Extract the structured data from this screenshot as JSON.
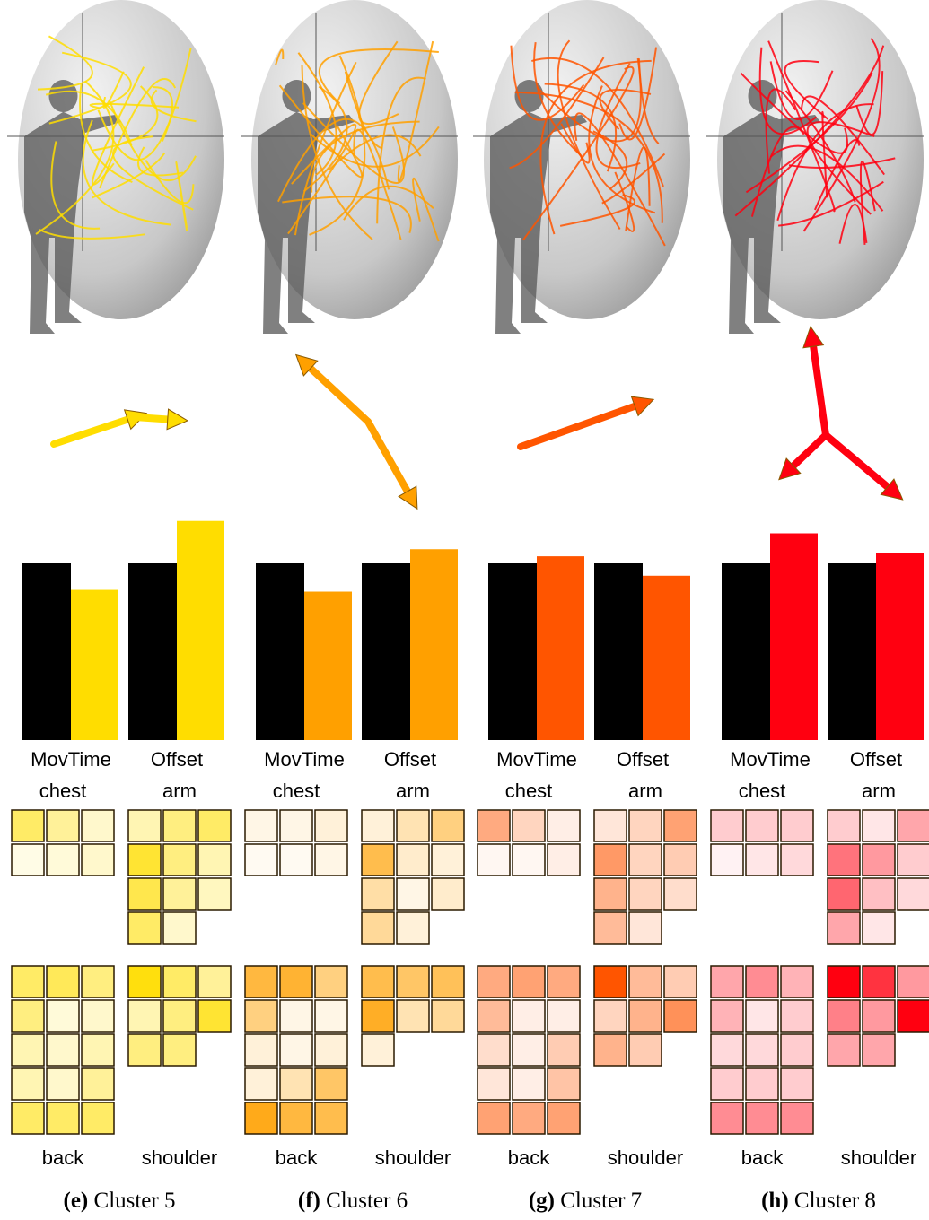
{
  "panels": [
    {
      "label": "(e)",
      "caption": "Cluster 5",
      "color": "#ffdd00",
      "bars": {
        "categories": [
          "MovTime",
          "Offset"
        ],
        "reference": [
          1,
          1
        ],
        "values": [
          0.85,
          1.24
        ]
      },
      "chest": {
        "label": "chest",
        "rows": [
          [
            0.6,
            0.4,
            0.2
          ],
          [
            0.1,
            0.15,
            0.2
          ]
        ]
      },
      "arm": {
        "label": "arm",
        "rows": [
          [
            0.3,
            0.5,
            0.6
          ],
          [
            0.8,
            0.5,
            0.3
          ],
          [
            0.7,
            0.4,
            0.25
          ],
          [
            0.6,
            0.2
          ]
        ]
      },
      "back": {
        "label": "back",
        "rows": [
          [
            0.6,
            0.65,
            0.5
          ],
          [
            0.5,
            0.15,
            0.2
          ],
          [
            0.3,
            0.2,
            0.3
          ],
          [
            0.3,
            0.2,
            0.4
          ],
          [
            0.6,
            0.6,
            0.6
          ]
        ]
      },
      "shoulder": {
        "label": "shoulder",
        "rows": [
          [
            0.95,
            0.6,
            0.4
          ],
          [
            0.3,
            0.5,
            0.8
          ],
          [
            0.5,
            0.5
          ]
        ]
      }
    },
    {
      "label": "(f)",
      "caption": "Cluster 6",
      "color": "#ffa000",
      "bars": {
        "categories": [
          "MovTime",
          "Offset"
        ],
        "reference": [
          1,
          1
        ],
        "values": [
          0.84,
          1.08
        ]
      },
      "chest": {
        "label": "chest",
        "rows": [
          [
            0.1,
            0.1,
            0.15
          ],
          [
            0.05,
            0.05,
            0.1
          ]
        ]
      },
      "arm": {
        "label": "arm",
        "rows": [
          [
            0.15,
            0.3,
            0.5
          ],
          [
            0.7,
            0.2,
            0.15
          ],
          [
            0.35,
            0.1,
            0.2
          ],
          [
            0.4,
            0.15
          ]
        ]
      },
      "back": {
        "label": "back",
        "rows": [
          [
            0.75,
            0.8,
            0.5
          ],
          [
            0.5,
            0.1,
            0.1
          ],
          [
            0.15,
            0.1,
            0.15
          ],
          [
            0.15,
            0.3,
            0.6
          ],
          [
            0.9,
            0.75,
            0.7
          ]
        ]
      },
      "shoulder": {
        "label": "shoulder",
        "rows": [
          [
            0.7,
            0.6,
            0.65
          ],
          [
            0.85,
            0.3,
            0.4
          ],
          [
            0.15
          ]
        ]
      }
    },
    {
      "label": "(g)",
      "caption": "Cluster 7",
      "color": "#ff5500",
      "bars": {
        "categories": [
          "MovTime",
          "Offset"
        ],
        "reference": [
          1,
          1
        ],
        "values": [
          1.04,
          0.93
        ]
      },
      "chest": {
        "label": "chest",
        "rows": [
          [
            0.5,
            0.25,
            0.1
          ],
          [
            0.05,
            0.05,
            0.1
          ]
        ]
      },
      "arm": {
        "label": "arm",
        "rows": [
          [
            0.15,
            0.25,
            0.55
          ],
          [
            0.6,
            0.25,
            0.3
          ],
          [
            0.45,
            0.25,
            0.2
          ],
          [
            0.4,
            0.15
          ]
        ]
      },
      "back": {
        "label": "back",
        "rows": [
          [
            0.5,
            0.55,
            0.5
          ],
          [
            0.4,
            0.1,
            0.1
          ],
          [
            0.2,
            0.1,
            0.3
          ],
          [
            0.15,
            0.1,
            0.35
          ],
          [
            0.55,
            0.5,
            0.55
          ]
        ]
      },
      "shoulder": {
        "label": "shoulder",
        "rows": [
          [
            1.0,
            0.4,
            0.3
          ],
          [
            0.25,
            0.45,
            0.65
          ],
          [
            0.45,
            0.3
          ]
        ]
      }
    },
    {
      "label": "(h)",
      "caption": "Cluster 8",
      "color": "#ff0010",
      "bars": {
        "categories": [
          "MovTime",
          "Offset"
        ],
        "reference": [
          1,
          1
        ],
        "values": [
          1.17,
          1.06
        ]
      },
      "chest": {
        "label": "chest",
        "rows": [
          [
            0.2,
            0.2,
            0.2
          ],
          [
            0.05,
            0.1,
            0.15
          ]
        ]
      },
      "arm": {
        "label": "arm",
        "rows": [
          [
            0.2,
            0.1,
            0.35
          ],
          [
            0.55,
            0.4,
            0.2
          ],
          [
            0.6,
            0.25,
            0.15
          ],
          [
            0.35,
            0.1
          ]
        ]
      },
      "back": {
        "label": "back",
        "rows": [
          [
            0.35,
            0.45,
            0.3
          ],
          [
            0.3,
            0.1,
            0.2
          ],
          [
            0.15,
            0.15,
            0.2
          ],
          [
            0.2,
            0.2,
            0.2
          ],
          [
            0.45,
            0.45,
            0.45
          ]
        ]
      },
      "shoulder": {
        "label": "shoulder",
        "rows": [
          [
            1.0,
            0.8,
            0.4
          ],
          [
            0.5,
            0.4,
            1.0
          ],
          [
            0.35,
            0.35
          ]
        ]
      }
    }
  ]
}
